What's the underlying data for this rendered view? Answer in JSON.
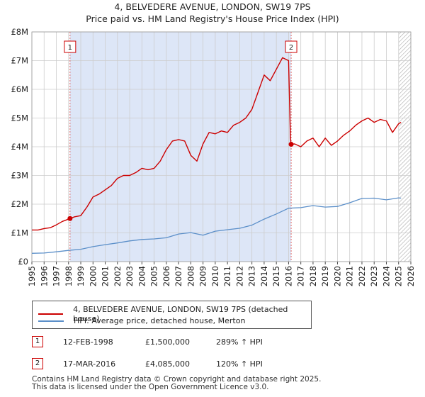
{
  "title": {
    "line1": "4, BELVEDERE AVENUE, LONDON, SW19 7PS",
    "line2": "Price paid vs. HM Land Registry's House Price Index (HPI)"
  },
  "legend": {
    "property_label": "4, BELVEDERE AVENUE, LONDON, SW19 7PS (detached house)",
    "hpi_label": "HPI: Average price, detached house, Merton"
  },
  "transactions": [
    {
      "num": "1",
      "date": "12-FEB-1998",
      "price": "£1,500,000",
      "hpi": "289% ↑ HPI"
    },
    {
      "num": "2",
      "date": "17-MAR-2016",
      "price": "£4,085,000",
      "hpi": "120% ↑ HPI"
    }
  ],
  "footer": {
    "line1": "Contains HM Land Registry data © Crown copyright and database right 2025.",
    "line2": "This data is licensed under the Open Government Licence v3.0."
  },
  "colors": {
    "property_line": "#cc0000",
    "hpi_line": "#5b8fc9",
    "shade": "#dde6f7",
    "grid": "#cccccc"
  },
  "chart_data": {
    "type": "line",
    "title": "4, BELVEDERE AVENUE, LONDON, SW19 7PS — Price paid vs. HM Land Registry's House Price Index (HPI)",
    "xlabel": "",
    "ylabel": "",
    "xlim": [
      1995,
      2026
    ],
    "ylim": [
      0,
      8000000
    ],
    "yticks": [
      0,
      1000000,
      2000000,
      3000000,
      4000000,
      5000000,
      6000000,
      7000000,
      8000000
    ],
    "ytick_labels": [
      "£0",
      "£1M",
      "£2M",
      "£3M",
      "£4M",
      "£5M",
      "£6M",
      "£7M",
      "£8M"
    ],
    "xticks": [
      1995,
      1996,
      1997,
      1998,
      1999,
      2000,
      2001,
      2002,
      2003,
      2004,
      2005,
      2006,
      2007,
      2008,
      2009,
      2010,
      2011,
      2012,
      2013,
      2014,
      2015,
      2016,
      2017,
      2018,
      2019,
      2020,
      2021,
      2022,
      2023,
      2024,
      2025,
      2026
    ],
    "xtick_labels": [
      "1995",
      "1996",
      "1997",
      "1998",
      "1999",
      "2000",
      "2001",
      "2002",
      "2003",
      "2004",
      "2005",
      "2006",
      "2007",
      "2008",
      "2009",
      "2010",
      "2011",
      "2012",
      "2013",
      "2014",
      "2015",
      "2016",
      "2017",
      "2018",
      "2019",
      "2020",
      "2021",
      "2022",
      "2023",
      "2024",
      "2025",
      "2026"
    ],
    "grid": true,
    "legend_position": "below",
    "shaded_range": [
      1998.12,
      2016.21
    ],
    "hatched_range": [
      2025.0,
      2026.0
    ],
    "annotations": [
      {
        "label": "1",
        "x": 1998.12,
        "y": 1500000
      },
      {
        "label": "2",
        "x": 2016.21,
        "y": 4085000
      }
    ],
    "series": [
      {
        "name": "4, BELVEDERE AVENUE, LONDON, SW19 7PS (detached house)",
        "x": [
          1995.0,
          1995.5,
          1996.0,
          1996.5,
          1997.0,
          1997.5,
          1998.12,
          1998.5,
          1999.0,
          1999.5,
          2000.0,
          2000.5,
          2001.0,
          2001.5,
          2002.0,
          2002.5,
          2003.0,
          2003.5,
          2004.0,
          2004.5,
          2005.0,
          2005.5,
          2006.0,
          2006.5,
          2007.0,
          2007.5,
          2008.0,
          2008.5,
          2009.0,
          2009.5,
          2010.0,
          2010.5,
          2011.0,
          2011.5,
          2012.0,
          2012.5,
          2013.0,
          2013.5,
          2014.0,
          2014.5,
          2015.0,
          2015.5,
          2016.0,
          2016.15,
          2016.21,
          2016.5,
          2017.0,
          2017.5,
          2018.0,
          2018.5,
          2019.0,
          2019.5,
          2020.0,
          2020.5,
          2021.0,
          2021.5,
          2022.0,
          2022.5,
          2023.0,
          2023.5,
          2024.0,
          2024.5,
          2025.0,
          2025.2
        ],
        "values": [
          1100000,
          1100000,
          1150000,
          1180000,
          1280000,
          1400000,
          1500000,
          1560000,
          1600000,
          1900000,
          2250000,
          2350000,
          2500000,
          2650000,
          2900000,
          3000000,
          3000000,
          3100000,
          3250000,
          3200000,
          3250000,
          3500000,
          3900000,
          4200000,
          4250000,
          4200000,
          3700000,
          3500000,
          4100000,
          4500000,
          4450000,
          4550000,
          4500000,
          4750000,
          4850000,
          5000000,
          5300000,
          5900000,
          6500000,
          6300000,
          6700000,
          7100000,
          7000000,
          4300000,
          4085000,
          4100000,
          4000000,
          4200000,
          4300000,
          4000000,
          4300000,
          4050000,
          4200000,
          4400000,
          4550000,
          4750000,
          4900000,
          5000000,
          4850000,
          4950000,
          4900000,
          4500000,
          4800000,
          4850000
        ]
      },
      {
        "name": "HPI: Average price, detached house, Merton",
        "x": [
          1995.0,
          1996.0,
          1997.0,
          1998.0,
          1999.0,
          2000.0,
          2001.0,
          2002.0,
          2003.0,
          2004.0,
          2005.0,
          2006.0,
          2007.0,
          2008.0,
          2009.0,
          2010.0,
          2011.0,
          2012.0,
          2013.0,
          2014.0,
          2015.0,
          2016.0,
          2017.0,
          2018.0,
          2019.0,
          2020.0,
          2021.0,
          2022.0,
          2023.0,
          2024.0,
          2025.0,
          2025.2
        ],
        "values": [
          290000,
          300000,
          340000,
          390000,
          430000,
          520000,
          590000,
          650000,
          720000,
          770000,
          790000,
          830000,
          960000,
          1010000,
          920000,
          1060000,
          1110000,
          1160000,
          1270000,
          1480000,
          1660000,
          1860000,
          1880000,
          1950000,
          1900000,
          1920000,
          2050000,
          2200000,
          2210000,
          2150000,
          2220000,
          2210000
        ]
      }
    ]
  }
}
